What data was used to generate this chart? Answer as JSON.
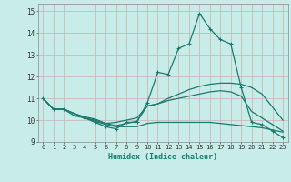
{
  "xlabel": "Humidex (Indice chaleur)",
  "ylabel": "",
  "background_color": "#c8ede8",
  "grid_color": "#b0d8d4",
  "line_color": "#1a7a6e",
  "xlim": [
    -0.5,
    23.5
  ],
  "ylim": [
    9,
    15.35
  ],
  "yticks": [
    9,
    10,
    11,
    12,
    13,
    14,
    15
  ],
  "xticks": [
    0,
    1,
    2,
    3,
    4,
    5,
    6,
    7,
    8,
    9,
    10,
    11,
    12,
    13,
    14,
    15,
    16,
    17,
    18,
    19,
    20,
    21,
    22,
    23
  ],
  "series": [
    [
      11.0,
      10.5,
      10.5,
      10.2,
      10.1,
      9.9,
      9.7,
      9.6,
      9.9,
      9.9,
      10.8,
      12.2,
      12.1,
      13.3,
      13.5,
      14.9,
      14.2,
      13.7,
      13.5,
      11.5,
      9.9,
      9.8,
      9.5,
      9.2
    ],
    [
      11.0,
      10.5,
      10.5,
      10.3,
      10.1,
      10.0,
      9.85,
      9.9,
      10.0,
      10.1,
      10.65,
      10.75,
      11.0,
      11.2,
      11.4,
      11.55,
      11.65,
      11.7,
      11.7,
      11.65,
      11.5,
      11.2,
      10.6,
      10.0
    ],
    [
      11.0,
      10.5,
      10.5,
      10.3,
      10.15,
      10.05,
      9.85,
      9.75,
      9.85,
      9.95,
      10.65,
      10.75,
      10.9,
      11.0,
      11.1,
      11.2,
      11.3,
      11.35,
      11.3,
      11.1,
      10.4,
      10.1,
      9.8,
      9.5
    ],
    [
      11.0,
      10.5,
      10.5,
      10.3,
      10.1,
      9.95,
      9.8,
      9.7,
      9.7,
      9.7,
      9.85,
      9.9,
      9.9,
      9.9,
      9.9,
      9.9,
      9.9,
      9.85,
      9.8,
      9.75,
      9.7,
      9.65,
      9.55,
      9.45
    ]
  ]
}
